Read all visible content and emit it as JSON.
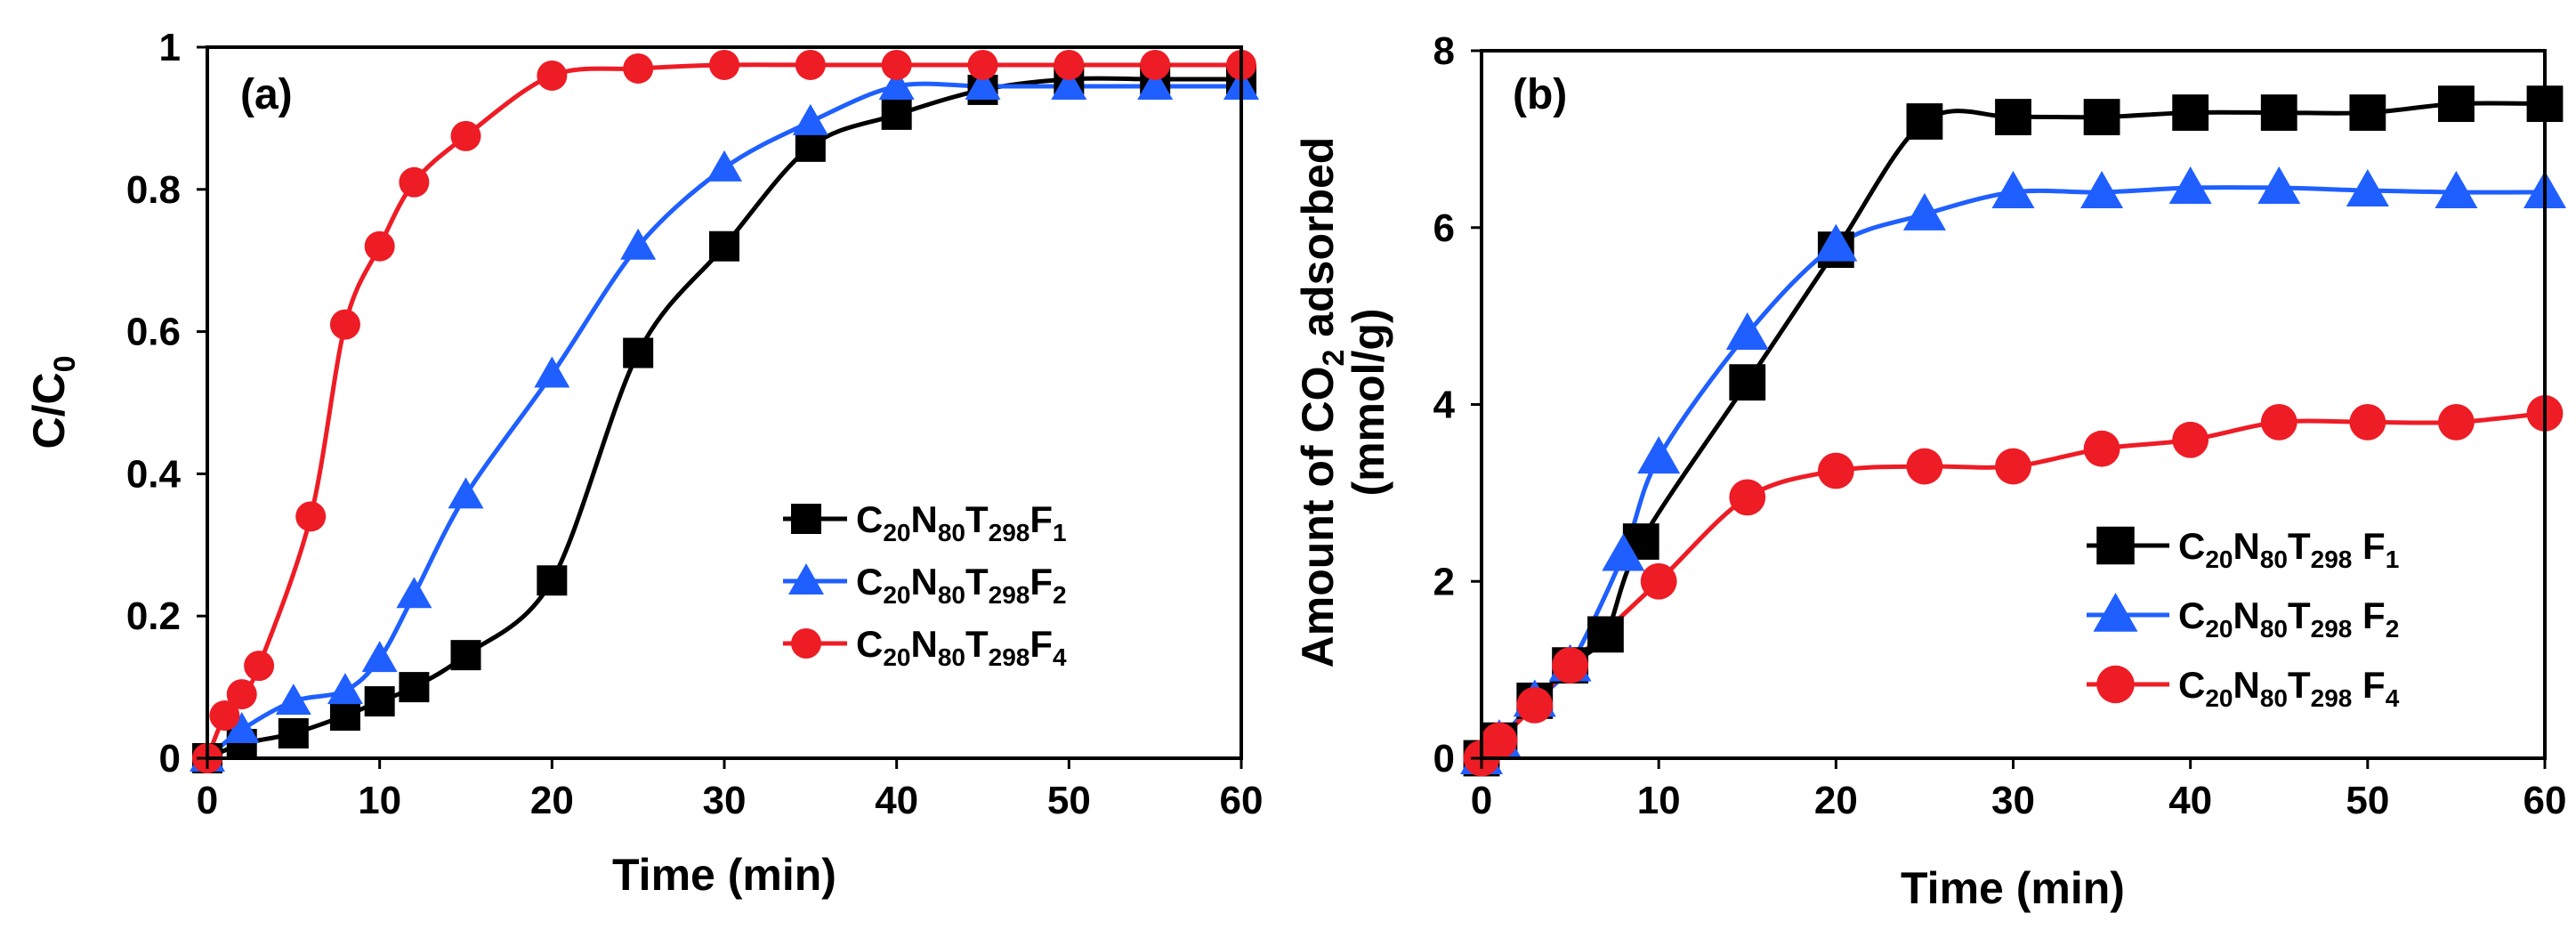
{
  "chart_data": [
    {
      "id": "a",
      "type": "line",
      "panel_label": "(a)",
      "xlabel": "Time (min)",
      "ylabel": {
        "main": "C/C",
        "sub": "0"
      },
      "xlim": [
        0,
        60
      ],
      "ylim": [
        0,
        1
      ],
      "xticks": [
        0,
        10,
        20,
        30,
        40,
        50,
        60
      ],
      "yticks": [
        0,
        0.2,
        0.4,
        0.6,
        0.8,
        1
      ],
      "yticklabels": [
        "0",
        "0.2",
        "0.4",
        "0.6",
        "0.8",
        "1"
      ],
      "legend_position": "middle-right",
      "series": [
        {
          "key": "F1",
          "color": "#000000",
          "marker": "square",
          "label_parts": [
            [
              "C",
              ""
            ],
            [
              "20",
              "sub"
            ],
            [
              "N",
              ""
            ],
            [
              "80",
              "sub"
            ],
            [
              "T",
              ""
            ],
            [
              "298",
              "sub"
            ],
            [
              "F",
              ""
            ],
            [
              "1",
              "sub"
            ]
          ],
          "x": [
            0,
            2,
            5,
            8,
            10,
            12,
            15,
            20,
            25,
            30,
            35,
            40,
            45,
            50,
            55,
            60
          ],
          "y": [
            0,
            0.02,
            0.035,
            0.06,
            0.08,
            0.1,
            0.145,
            0.25,
            0.57,
            0.72,
            0.86,
            0.905,
            0.94,
            0.955,
            0.955,
            0.955
          ]
        },
        {
          "key": "F2",
          "color": "#1f5fff",
          "marker": "triangle",
          "label_parts": [
            [
              "C",
              ""
            ],
            [
              "20",
              "sub"
            ],
            [
              "N",
              ""
            ],
            [
              "80",
              "sub"
            ],
            [
              "T",
              ""
            ],
            [
              "298",
              "sub"
            ],
            [
              "F",
              ""
            ],
            [
              "2",
              "sub"
            ]
          ],
          "x": [
            0,
            2,
            5,
            8,
            10,
            12,
            15,
            20,
            25,
            30,
            35,
            40,
            45,
            50,
            55,
            60
          ],
          "y": [
            0,
            0.04,
            0.08,
            0.095,
            0.14,
            0.23,
            0.37,
            0.54,
            0.72,
            0.83,
            0.895,
            0.945,
            0.945,
            0.945,
            0.945,
            0.945
          ]
        },
        {
          "key": "F4",
          "color": "#ee1c25",
          "marker": "circle",
          "label_parts": [
            [
              "C",
              ""
            ],
            [
              "20",
              "sub"
            ],
            [
              "N",
              ""
            ],
            [
              "80",
              "sub"
            ],
            [
              "T",
              ""
            ],
            [
              "298",
              "sub"
            ],
            [
              "F",
              ""
            ],
            [
              "4",
              "sub"
            ]
          ],
          "x": [
            0,
            1,
            2,
            3,
            6,
            8,
            10,
            12,
            15,
            20,
            25,
            30,
            35,
            40,
            45,
            50,
            55,
            60
          ],
          "y": [
            0,
            0.06,
            0.09,
            0.13,
            0.34,
            0.61,
            0.72,
            0.81,
            0.875,
            0.96,
            0.97,
            0.975,
            0.975,
            0.975,
            0.975,
            0.975,
            0.975,
            0.975
          ]
        }
      ]
    },
    {
      "id": "b",
      "type": "line",
      "panel_label": "(b)",
      "xlabel": "Time (min)",
      "ylabel": {
        "line1_pre": "Amount of CO",
        "line1_sub": "2",
        "line1_post": " adsorbed",
        "line2": "(mmol/g)"
      },
      "xlim": [
        0,
        60
      ],
      "ylim": [
        0,
        8
      ],
      "xticks": [
        0,
        10,
        20,
        30,
        40,
        50,
        60
      ],
      "yticks": [
        0,
        2,
        4,
        6,
        8
      ],
      "yticklabels": [
        "0",
        "2",
        "4",
        "6",
        "8"
      ],
      "legend_position": "lower-right",
      "series": [
        {
          "key": "F1",
          "color": "#000000",
          "marker": "square",
          "label_parts": [
            [
              "C",
              ""
            ],
            [
              "20",
              "sub"
            ],
            [
              "N",
              ""
            ],
            [
              "80",
              "sub"
            ],
            [
              "T",
              ""
            ],
            [
              "298",
              "sub"
            ],
            [
              " F",
              ""
            ],
            [
              "1",
              "sub"
            ]
          ],
          "x": [
            0,
            1,
            3,
            5,
            7,
            9,
            15,
            20,
            25,
            30,
            35,
            40,
            45,
            50,
            55,
            60
          ],
          "y": [
            0,
            0.2,
            0.65,
            1.05,
            1.4,
            2.45,
            4.25,
            5.75,
            7.2,
            7.25,
            7.25,
            7.3,
            7.3,
            7.3,
            7.4,
            7.4
          ]
        },
        {
          "key": "F2",
          "color": "#1f5fff",
          "marker": "triangle",
          "label_parts": [
            [
              "C",
              ""
            ],
            [
              "20",
              "sub"
            ],
            [
              "N",
              ""
            ],
            [
              "80",
              "sub"
            ],
            [
              "T",
              ""
            ],
            [
              "298",
              "sub"
            ],
            [
              " F",
              ""
            ],
            [
              "2",
              "sub"
            ]
          ],
          "x": [
            0,
            1,
            3,
            5,
            8,
            10,
            15,
            20,
            25,
            30,
            35,
            40,
            45,
            50,
            55,
            60
          ],
          "y": [
            0,
            0.2,
            0.65,
            1.05,
            2.3,
            3.4,
            4.8,
            5.8,
            6.15,
            6.4,
            6.4,
            6.45,
            6.45,
            6.42,
            6.4,
            6.4
          ]
        },
        {
          "key": "F4",
          "color": "#ee1c25",
          "marker": "circle",
          "label_parts": [
            [
              "C",
              ""
            ],
            [
              "20",
              "sub"
            ],
            [
              "N",
              ""
            ],
            [
              "80",
              "sub"
            ],
            [
              "T",
              ""
            ],
            [
              "298",
              "sub"
            ],
            [
              " F",
              ""
            ],
            [
              "4",
              "sub"
            ]
          ],
          "x": [
            0,
            1,
            3,
            5,
            10,
            15,
            20,
            25,
            30,
            35,
            40,
            45,
            50,
            55,
            60
          ],
          "y": [
            0,
            0.2,
            0.6,
            1.05,
            2.0,
            2.95,
            3.25,
            3.3,
            3.3,
            3.5,
            3.6,
            3.8,
            3.8,
            3.8,
            3.9
          ]
        }
      ]
    }
  ]
}
